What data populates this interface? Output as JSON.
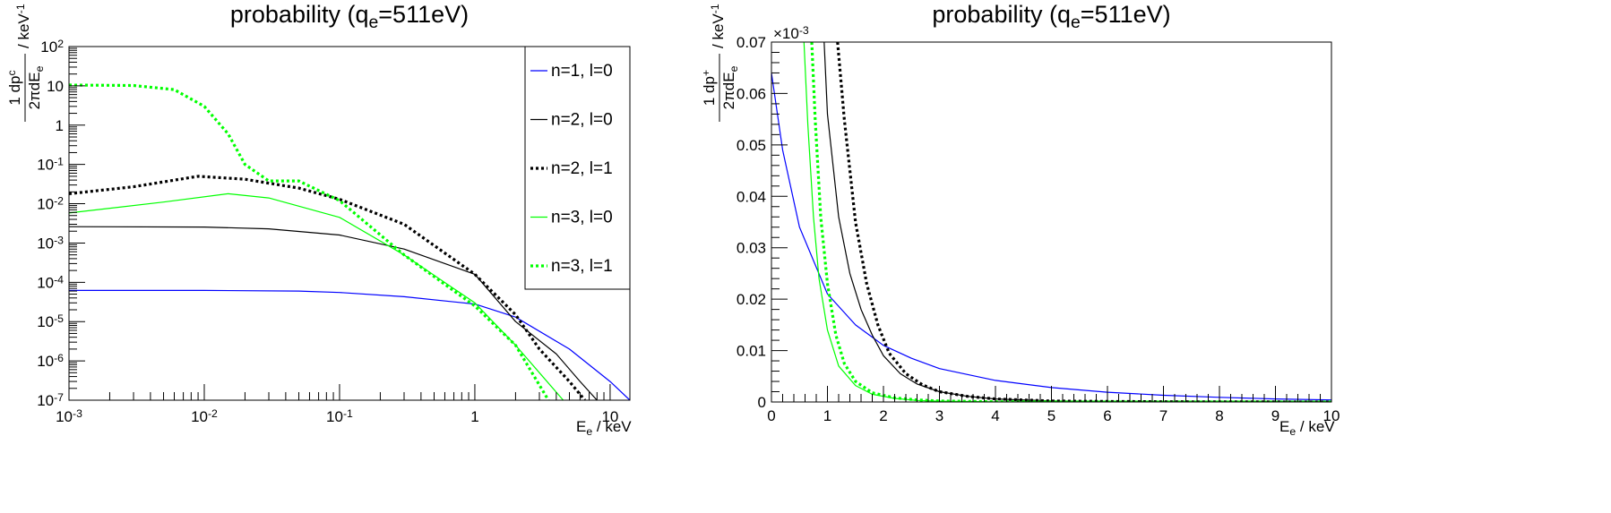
{
  "colors": {
    "blue": "#0000ff",
    "black": "#000000",
    "green": "#00ff00"
  },
  "chart_data": [
    {
      "type": "line",
      "title": "probability (q_e=511eV)",
      "title_parts": {
        "main": "probability (q",
        "sub": "e",
        "tail": "=511eV)"
      },
      "xlabel_parts": {
        "main": "E",
        "sub": "e",
        "tail": "/ keV"
      },
      "ylabel_parts": {
        "num": "1 dp",
        "num_sup": "c",
        "den": "2πdE",
        "den_sub": "e",
        "unit": "/ keV",
        "unit_sup": "-1"
      },
      "x_scale": "log",
      "y_scale": "log",
      "xlim": [
        0.001,
        14
      ],
      "ylim": [
        1e-07,
        100
      ],
      "x_ticks": [
        {
          "value": 0.001,
          "base": "10",
          "exp": "-3"
        },
        {
          "value": 0.01,
          "base": "10",
          "exp": "-2"
        },
        {
          "value": 0.1,
          "base": "10",
          "exp": "-1"
        },
        {
          "value": 1,
          "base": "1",
          "exp": ""
        },
        {
          "value": 10,
          "base": "10",
          "exp": ""
        }
      ],
      "y_ticks": [
        {
          "value": 1e-07,
          "base": "10",
          "exp": "-7"
        },
        {
          "value": 1e-06,
          "base": "10",
          "exp": "-6"
        },
        {
          "value": 1e-05,
          "base": "10",
          "exp": "-5"
        },
        {
          "value": 0.0001,
          "base": "10",
          "exp": "-4"
        },
        {
          "value": 0.001,
          "base": "10",
          "exp": "-3"
        },
        {
          "value": 0.01,
          "base": "10",
          "exp": "-2"
        },
        {
          "value": 0.1,
          "base": "10",
          "exp": "-1"
        },
        {
          "value": 1,
          "base": "1",
          "exp": ""
        },
        {
          "value": 10,
          "base": "10",
          "exp": ""
        },
        {
          "value": 100,
          "base": "10",
          "exp": "2"
        }
      ],
      "legend_position": "top-right",
      "series": [
        {
          "name": "n=1, l=0",
          "color": "blue",
          "dash": false,
          "x": [
            0.001,
            0.01,
            0.05,
            0.1,
            0.3,
            1,
            2,
            5,
            10,
            14
          ],
          "y": [
            6.2e-05,
            6.2e-05,
            6e-05,
            5.5e-05,
            4.3e-05,
            2.8e-05,
            1.3e-05,
            2e-06,
            3e-07,
            1e-07
          ]
        },
        {
          "name": "n=2, l=0",
          "color": "black",
          "dash": false,
          "x": [
            0.001,
            0.01,
            0.03,
            0.1,
            0.3,
            1,
            2,
            4,
            6,
            8
          ],
          "y": [
            0.0026,
            0.00255,
            0.0023,
            0.0016,
            0.0007,
            0.00016,
            1e-05,
            1.5e-06,
            3e-07,
            1e-07
          ]
        },
        {
          "name": "n=2, l=1",
          "color": "black",
          "dash": true,
          "x": [
            0.001,
            0.003,
            0.009,
            0.02,
            0.05,
            0.1,
            0.3,
            1,
            2,
            3,
            5,
            6.5
          ],
          "y": [
            0.018,
            0.027,
            0.05,
            0.042,
            0.025,
            0.013,
            0.003,
            0.00016,
            1.5e-05,
            2e-06,
            3e-07,
            1e-07
          ]
        },
        {
          "name": "n=3, l=0",
          "color": "green",
          "dash": false,
          "x": [
            0.001,
            0.005,
            0.015,
            0.03,
            0.1,
            0.3,
            1,
            2,
            3,
            4.5
          ],
          "y": [
            0.0058,
            0.011,
            0.018,
            0.014,
            0.0045,
            0.0005,
            3e-05,
            2.5e-06,
            5e-07,
            1e-07
          ]
        },
        {
          "name": "n=3, l=1",
          "color": "green",
          "dash": true,
          "x": [
            0.001,
            0.003,
            0.006,
            0.01,
            0.015,
            0.02,
            0.03,
            0.05,
            0.1,
            0.3,
            1,
            2,
            3.5
          ],
          "y": [
            10.5,
            10.2,
            8,
            3,
            0.6,
            0.1,
            0.038,
            0.038,
            0.012,
            0.0005,
            2.5e-05,
            2.5e-06,
            1e-07
          ]
        }
      ]
    },
    {
      "type": "line",
      "title": "probability (q_e=511eV)",
      "title_parts": {
        "main": "probability (q",
        "sub": "e",
        "tail": "=511eV)"
      },
      "xlabel_parts": {
        "main": "E",
        "sub": "e",
        "tail": "/ keV"
      },
      "ylabel_parts": {
        "num": "1 dp",
        "num_sup": "+",
        "den": "2πdE",
        "den_sub": "e",
        "unit": "/ keV",
        "unit_sup": "-1"
      },
      "multiplier": "×10",
      "multiplier_exp": "-3",
      "x_scale": "linear",
      "y_scale": "linear",
      "xlim": [
        0,
        10
      ],
      "ylim": [
        0,
        0.07
      ],
      "x_ticks": [
        "0",
        "1",
        "2",
        "3",
        "4",
        "5",
        "6",
        "7",
        "8",
        "9",
        "10"
      ],
      "y_ticks": [
        "0",
        "0.01",
        "0.02",
        "0.03",
        "0.04",
        "0.05",
        "0.06",
        "0.07"
      ],
      "y_tick_values": [
        0,
        0.01,
        0.02,
        0.03,
        0.04,
        0.05,
        0.06,
        0.07
      ],
      "series": [
        {
          "name": "n=1, l=0",
          "color": "blue",
          "dash": false,
          "x": [
            0,
            0.2,
            0.5,
            1,
            1.5,
            2,
            2.5,
            3,
            4,
            5,
            6,
            7,
            8,
            9,
            10
          ],
          "y": [
            0.064,
            0.049,
            0.034,
            0.021,
            0.015,
            0.011,
            0.0085,
            0.0065,
            0.0042,
            0.0028,
            0.0019,
            0.0013,
            0.0009,
            0.0006,
            0.0004
          ]
        },
        {
          "name": "n=2, l=0",
          "color": "black",
          "dash": false,
          "x": [
            0.94,
            1.0,
            1.2,
            1.4,
            1.6,
            1.8,
            2,
            2.3,
            2.6,
            3,
            3.5,
            4,
            5,
            6,
            7,
            8,
            9,
            10
          ],
          "y": [
            0.07,
            0.056,
            0.036,
            0.025,
            0.018,
            0.013,
            0.009,
            0.0055,
            0.0035,
            0.002,
            0.0011,
            0.0006,
            0.0002,
            0.0001,
            5e-05,
            2e-05,
            1e-05,
            0
          ]
        },
        {
          "name": "n=2, l=1",
          "color": "black",
          "dash": true,
          "x": [
            1.18,
            1.3,
            1.5,
            1.7,
            1.9,
            2.1,
            2.4,
            2.7,
            3,
            3.5,
            4,
            5,
            6,
            7,
            8,
            9,
            10
          ],
          "y": [
            0.07,
            0.055,
            0.035,
            0.023,
            0.015,
            0.0095,
            0.0055,
            0.0033,
            0.002,
            0.0011,
            0.0006,
            0.0002,
            0.0001,
            5e-05,
            2e-05,
            1e-05,
            0
          ]
        },
        {
          "name": "n=3, l=0",
          "color": "green",
          "dash": false,
          "x": [
            0.58,
            0.65,
            0.75,
            0.85,
            1,
            1.2,
            1.5,
            1.8,
            2.2,
            2.6,
            3,
            4,
            5,
            6,
            7,
            8,
            9,
            10
          ],
          "y": [
            0.07,
            0.054,
            0.036,
            0.024,
            0.014,
            0.007,
            0.0032,
            0.0015,
            0.0007,
            0.0003,
            0.00015,
            4e-05,
            1e-05,
            0,
            0,
            0,
            0,
            0
          ]
        },
        {
          "name": "n=3, l=1",
          "color": "green",
          "dash": true,
          "x": [
            0.72,
            0.78,
            0.88,
            1.0,
            1.15,
            1.3,
            1.5,
            1.8,
            2.2,
            2.6,
            3,
            4,
            5,
            6,
            7,
            8,
            9,
            10
          ],
          "y": [
            0.07,
            0.055,
            0.036,
            0.023,
            0.013,
            0.0075,
            0.004,
            0.0018,
            0.0008,
            0.0004,
            0.0002,
            5e-05,
            1e-05,
            0,
            0,
            0,
            0,
            0
          ]
        }
      ]
    }
  ]
}
